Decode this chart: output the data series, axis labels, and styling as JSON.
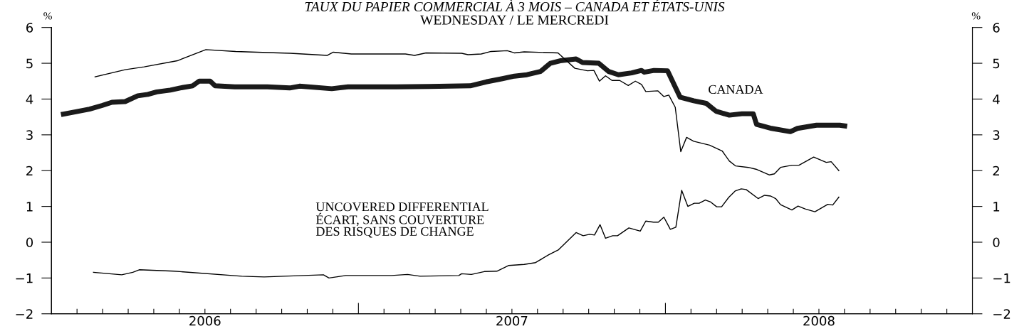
{
  "chart_data": {
    "type": "line",
    "title": "TAUX DU PAPIER COMMERCIAL À 3 MOIS – CANADA ET ÉTATS-UNIS",
    "subtitle": "WEDNESDAY / LE MERCREDI",
    "ylabel": "%",
    "y2label": "%",
    "annotations": [
      "CANADA",
      "UNCOVERED DIFFERENTIAL\nÉCART, SANS COUVERTURE\nDES RISQUES DE CHANGE"
    ],
    "xlim": [
      2006.0,
      2009.0
    ],
    "xticks": [
      {
        "value": 2006.0833,
        "label": null
      },
      {
        "value": 2006.1667,
        "label": null
      },
      {
        "value": 2006.25,
        "label": null
      },
      {
        "value": 2006.3333,
        "label": null
      },
      {
        "value": 2006.4167,
        "label": null
      },
      {
        "value": 2006.5,
        "label": "2006"
      },
      {
        "value": 2006.5833,
        "label": null
      },
      {
        "value": 2006.6667,
        "label": null
      },
      {
        "value": 2006.75,
        "label": null
      },
      {
        "value": 2006.8333,
        "label": null
      },
      {
        "value": 2006.9167,
        "label": null
      },
      {
        "value": 2007,
        "label": null
      },
      {
        "value": 2007.0833,
        "label": null
      },
      {
        "value": 2007.1667,
        "label": null
      },
      {
        "value": 2007.25,
        "label": null
      },
      {
        "value": 2007.3333,
        "label": null
      },
      {
        "value": 2007.4167,
        "label": null
      },
      {
        "value": 2007.5,
        "label": "2007"
      },
      {
        "value": 2007.5833,
        "label": null
      },
      {
        "value": 2007.6667,
        "label": null
      },
      {
        "value": 2007.75,
        "label": null
      },
      {
        "value": 2007.8333,
        "label": null
      },
      {
        "value": 2007.9167,
        "label": null
      },
      {
        "value": 2008,
        "label": null
      },
      {
        "value": 2008.0833,
        "label": null
      },
      {
        "value": 2008.1667,
        "label": null
      },
      {
        "value": 2008.25,
        "label": null
      },
      {
        "value": 2008.3333,
        "label": null
      },
      {
        "value": 2008.4167,
        "label": null
      },
      {
        "value": 2008.5,
        "label": "2008"
      },
      {
        "value": 2008.5833,
        "label": null
      },
      {
        "value": 2008.6667,
        "label": null
      },
      {
        "value": 2008.75,
        "label": null
      },
      {
        "value": 2008.8333,
        "label": null
      },
      {
        "value": 2008.9167,
        "label": null
      }
    ],
    "ylim": [
      -2,
      6
    ],
    "yticks": [
      {
        "value": -2,
        "label": "−2"
      },
      {
        "value": -1,
        "label": "−1"
      },
      0,
      1,
      2,
      3,
      4,
      5,
      6
    ],
    "y2lim": [
      -2,
      6
    ],
    "y2ticks": [
      {
        "value": -2,
        "label": "−2"
      },
      {
        "value": -1,
        "label": "−1"
      },
      0,
      1,
      2,
      3,
      4,
      5,
      6
    ],
    "grid": false,
    "marker": "none",
    "line_style": "solid",
    "series": [
      {
        "color": "#1a1a1a",
        "x": [
          2006.039,
          2006.082,
          2006.124,
          2006.165,
          2006.197,
          2006.24,
          2006.281,
          2006.314,
          2006.343,
          2006.387,
          2006.419,
          2006.46,
          2006.481,
          2006.517,
          2006.533,
          2006.597,
          2006.703,
          2006.776,
          2006.808,
          2006.913,
          2006.966,
          2007.124,
          2007.229,
          2007.364,
          2007.416,
          2007.469,
          2007.508,
          2007.549,
          2007.593,
          2007.625,
          2007.657,
          2007.709,
          2007.73,
          2007.783,
          2007.815,
          2007.847,
          2007.89,
          2007.922,
          2007.931,
          2007.963,
          2008.007,
          2008.048,
          2008.092,
          2008.133,
          2008.165,
          2008.208,
          2008.249,
          2008.286,
          2008.297,
          2008.346,
          2008.407,
          2008.43,
          2008.492,
          2008.568,
          2008.584
        ],
        "values": [
          3.58,
          3.65,
          3.72,
          3.82,
          3.91,
          3.93,
          4.09,
          4.13,
          4.2,
          4.25,
          4.31,
          4.37,
          4.5,
          4.5,
          4.37,
          4.34,
          4.34,
          4.31,
          4.36,
          4.29,
          4.34,
          4.34,
          4.35,
          4.37,
          4.48,
          4.57,
          4.64,
          4.68,
          4.77,
          5.0,
          5.07,
          5.12,
          5.02,
          5.0,
          4.77,
          4.68,
          4.73,
          4.8,
          4.75,
          4.8,
          4.79,
          4.05,
          3.95,
          3.88,
          3.66,
          3.55,
          3.59,
          3.59,
          3.29,
          3.18,
          3.09,
          3.18,
          3.27,
          3.27,
          3.25
        ]
      },
      {
        "color": "#000000",
        "x": [
          2006.142,
          2006.24,
          2006.302,
          2006.41,
          2006.503,
          2006.6,
          2006.705,
          2006.778,
          2006.899,
          2006.918,
          2006.977,
          2007.153,
          2007.183,
          2007.22,
          2007.336,
          2007.357,
          2007.4,
          2007.432,
          2007.485,
          2007.508,
          2007.54,
          2007.65,
          2007.705,
          2007.746,
          2007.767,
          2007.785,
          2007.805,
          2007.826,
          2007.851,
          2007.879,
          2007.902,
          2007.922,
          2007.936,
          2007.975,
          2007.995,
          2008.011,
          2008.032,
          2008.05,
          2008.069,
          2008.092,
          2008.144,
          2008.185,
          2008.208,
          2008.229,
          2008.27,
          2008.295,
          2008.339,
          2008.355,
          2008.375,
          2008.412,
          2008.435,
          2008.483,
          2008.524,
          2008.54,
          2008.565
        ],
        "values": [
          4.62,
          4.82,
          4.9,
          5.07,
          5.38,
          5.33,
          5.3,
          5.28,
          5.22,
          5.31,
          5.26,
          5.26,
          5.22,
          5.29,
          5.28,
          5.24,
          5.26,
          5.33,
          5.35,
          5.29,
          5.32,
          5.29,
          4.86,
          4.79,
          4.8,
          4.5,
          4.65,
          4.52,
          4.52,
          4.38,
          4.5,
          4.41,
          4.21,
          4.23,
          4.07,
          4.11,
          3.77,
          2.53,
          2.93,
          2.82,
          2.71,
          2.55,
          2.27,
          2.13,
          2.09,
          2.04,
          1.88,
          1.91,
          2.09,
          2.15,
          2.15,
          2.38,
          2.23,
          2.25,
          2.0
        ]
      },
      {
        "color": "#000000",
        "x": [
          2006.137,
          2006.229,
          2006.265,
          2006.286,
          2006.4,
          2006.62,
          2006.693,
          2006.886,
          2006.904,
          2006.959,
          2007.108,
          2007.16,
          2007.201,
          2007.327,
          2007.336,
          2007.368,
          2007.41,
          2007.451,
          2007.49,
          2007.54,
          2007.577,
          2007.62,
          2007.652,
          2007.709,
          2007.732,
          2007.753,
          2007.769,
          2007.787,
          2007.805,
          2007.828,
          2007.844,
          2007.881,
          2007.918,
          2007.936,
          2007.961,
          2007.977,
          2007.995,
          2008.016,
          2008.034,
          2008.053,
          2008.073,
          2008.094,
          2008.11,
          2008.13,
          2008.146,
          2008.167,
          2008.183,
          2008.206,
          2008.227,
          2008.247,
          2008.263,
          2008.302,
          2008.323,
          2008.343,
          2008.359,
          2008.375,
          2008.412,
          2008.432,
          2008.455,
          2008.487,
          2008.529,
          2008.545,
          2008.565
        ],
        "values": [
          -0.84,
          -0.91,
          -0.84,
          -0.77,
          -0.81,
          -0.95,
          -0.97,
          -0.91,
          -1.0,
          -0.93,
          -0.93,
          -0.9,
          -0.95,
          -0.93,
          -0.88,
          -0.9,
          -0.82,
          -0.81,
          -0.65,
          -0.62,
          -0.57,
          -0.35,
          -0.21,
          0.27,
          0.18,
          0.22,
          0.2,
          0.49,
          0.11,
          0.18,
          0.18,
          0.4,
          0.31,
          0.59,
          0.56,
          0.56,
          0.7,
          0.36,
          0.42,
          1.45,
          1.0,
          1.09,
          1.09,
          1.18,
          1.13,
          0.99,
          0.99,
          1.25,
          1.43,
          1.49,
          1.47,
          1.22,
          1.31,
          1.29,
          1.22,
          1.05,
          0.9,
          1.01,
          0.93,
          0.85,
          1.06,
          1.04,
          1.26
        ]
      }
    ]
  }
}
